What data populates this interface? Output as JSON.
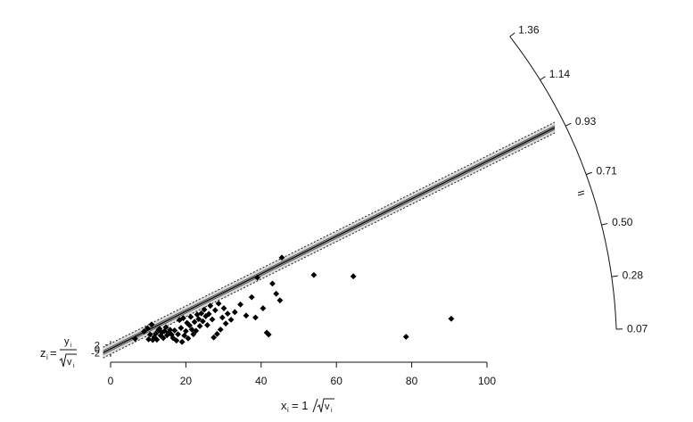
{
  "chart_data": {
    "type": "scatter",
    "x_axis": {
      "ticks": [
        0,
        20,
        40,
        60,
        80,
        100
      ],
      "range": [
        0,
        100
      ]
    },
    "y_axis": {
      "ticks": [
        2,
        0,
        -2
      ],
      "tick_labels": [
        "2",
        "0",
        "-2"
      ]
    },
    "radial_axis": {
      "ticks": [
        1.36,
        1.14,
        0.93,
        0.71,
        0.5,
        0.28,
        0.07
      ],
      "tick_labels": [
        "1.36",
        "1.14",
        "0.93",
        "0.71",
        "0.50",
        "0.28",
        "0.07"
      ]
    },
    "regression": {
      "slope": 0.4963,
      "intercept": 0.0
    },
    "points": [
      {
        "x": 6.5,
        "y": 3.2
      },
      {
        "x": 8.9,
        "y": 5.5
      },
      {
        "x": 9.8,
        "y": 6.5
      },
      {
        "x": 10.1,
        "y": 3.0
      },
      {
        "x": 10.5,
        "y": 4.5
      },
      {
        "x": 10.9,
        "y": 7.7
      },
      {
        "x": 11.2,
        "y": 2.8
      },
      {
        "x": 11.6,
        "y": 3.7
      },
      {
        "x": 12.0,
        "y": 4.8
      },
      {
        "x": 12.3,
        "y": 2.9
      },
      {
        "x": 12.7,
        "y": 5.9
      },
      {
        "x": 13.0,
        "y": 6.3
      },
      {
        "x": 13.3,
        "y": 4.2
      },
      {
        "x": 13.6,
        "y": 5.1
      },
      {
        "x": 14.0,
        "y": 3.4
      },
      {
        "x": 14.3,
        "y": 5.6
      },
      {
        "x": 14.7,
        "y": 6.8
      },
      {
        "x": 15.0,
        "y": 4.3
      },
      {
        "x": 15.4,
        "y": 5.1
      },
      {
        "x": 15.8,
        "y": 6.0
      },
      {
        "x": 16.2,
        "y": 4.5
      },
      {
        "x": 16.6,
        "y": 3.4
      },
      {
        "x": 17.0,
        "y": 5.8
      },
      {
        "x": 17.5,
        "y": 2.6
      },
      {
        "x": 17.9,
        "y": 4.6
      },
      {
        "x": 18.3,
        "y": 9.1
      },
      {
        "x": 18.7,
        "y": 6.6
      },
      {
        "x": 19.0,
        "y": 2.2
      },
      {
        "x": 19.3,
        "y": 9.7
      },
      {
        "x": 19.6,
        "y": 4.2
      },
      {
        "x": 20.0,
        "y": 5.6
      },
      {
        "x": 20.3,
        "y": 8.2
      },
      {
        "x": 20.6,
        "y": 3.3
      },
      {
        "x": 21.0,
        "y": 7.4
      },
      {
        "x": 21.3,
        "y": 10.1
      },
      {
        "x": 21.6,
        "y": 6.1
      },
      {
        "x": 22.0,
        "y": 4.6
      },
      {
        "x": 22.3,
        "y": 8.5
      },
      {
        "x": 22.7,
        "y": 5.7
      },
      {
        "x": 23.0,
        "y": 10.8
      },
      {
        "x": 23.4,
        "y": 9.4
      },
      {
        "x": 23.7,
        "y": 7.2
      },
      {
        "x": 24.1,
        "y": 11.2
      },
      {
        "x": 24.5,
        "y": 8.7
      },
      {
        "x": 24.9,
        "y": 12.4
      },
      {
        "x": 25.3,
        "y": 10.3
      },
      {
        "x": 25.7,
        "y": 7.5
      },
      {
        "x": 26.1,
        "y": 11.0
      },
      {
        "x": 26.5,
        "y": 13.6
      },
      {
        "x": 27.0,
        "y": 9.3
      },
      {
        "x": 27.4,
        "y": 3.6
      },
      {
        "x": 27.8,
        "y": 12.2
      },
      {
        "x": 28.3,
        "y": 4.7
      },
      {
        "x": 28.7,
        "y": 14.3
      },
      {
        "x": 29.2,
        "y": 6.1
      },
      {
        "x": 29.7,
        "y": 9.9
      },
      {
        "x": 30.1,
        "y": 12.8
      },
      {
        "x": 30.6,
        "y": 8.0
      },
      {
        "x": 31.1,
        "y": 11.1
      },
      {
        "x": 32.0,
        "y": 9.2
      },
      {
        "x": 33.0,
        "y": 11.6
      },
      {
        "x": 34.5,
        "y": 14.0
      },
      {
        "x": 36.0,
        "y": 10.5
      },
      {
        "x": 37.5,
        "y": 16.3
      },
      {
        "x": 38.5,
        "y": 9.9
      },
      {
        "x": 39.0,
        "y": 22.5
      },
      {
        "x": 40.5,
        "y": 12.8
      },
      {
        "x": 41.5,
        "y": 5.1
      },
      {
        "x": 42.0,
        "y": 4.5
      },
      {
        "x": 43.0,
        "y": 20.6
      },
      {
        "x": 44.0,
        "y": 17.4
      },
      {
        "x": 45.0,
        "y": 15.3
      },
      {
        "x": 45.5,
        "y": 28.8
      },
      {
        "x": 54.0,
        "y": 23.3
      },
      {
        "x": 64.5,
        "y": 22.9
      },
      {
        "x": 78.5,
        "y": 3.8
      },
      {
        "x": 90.5,
        "y": 9.5
      }
    ]
  }
}
